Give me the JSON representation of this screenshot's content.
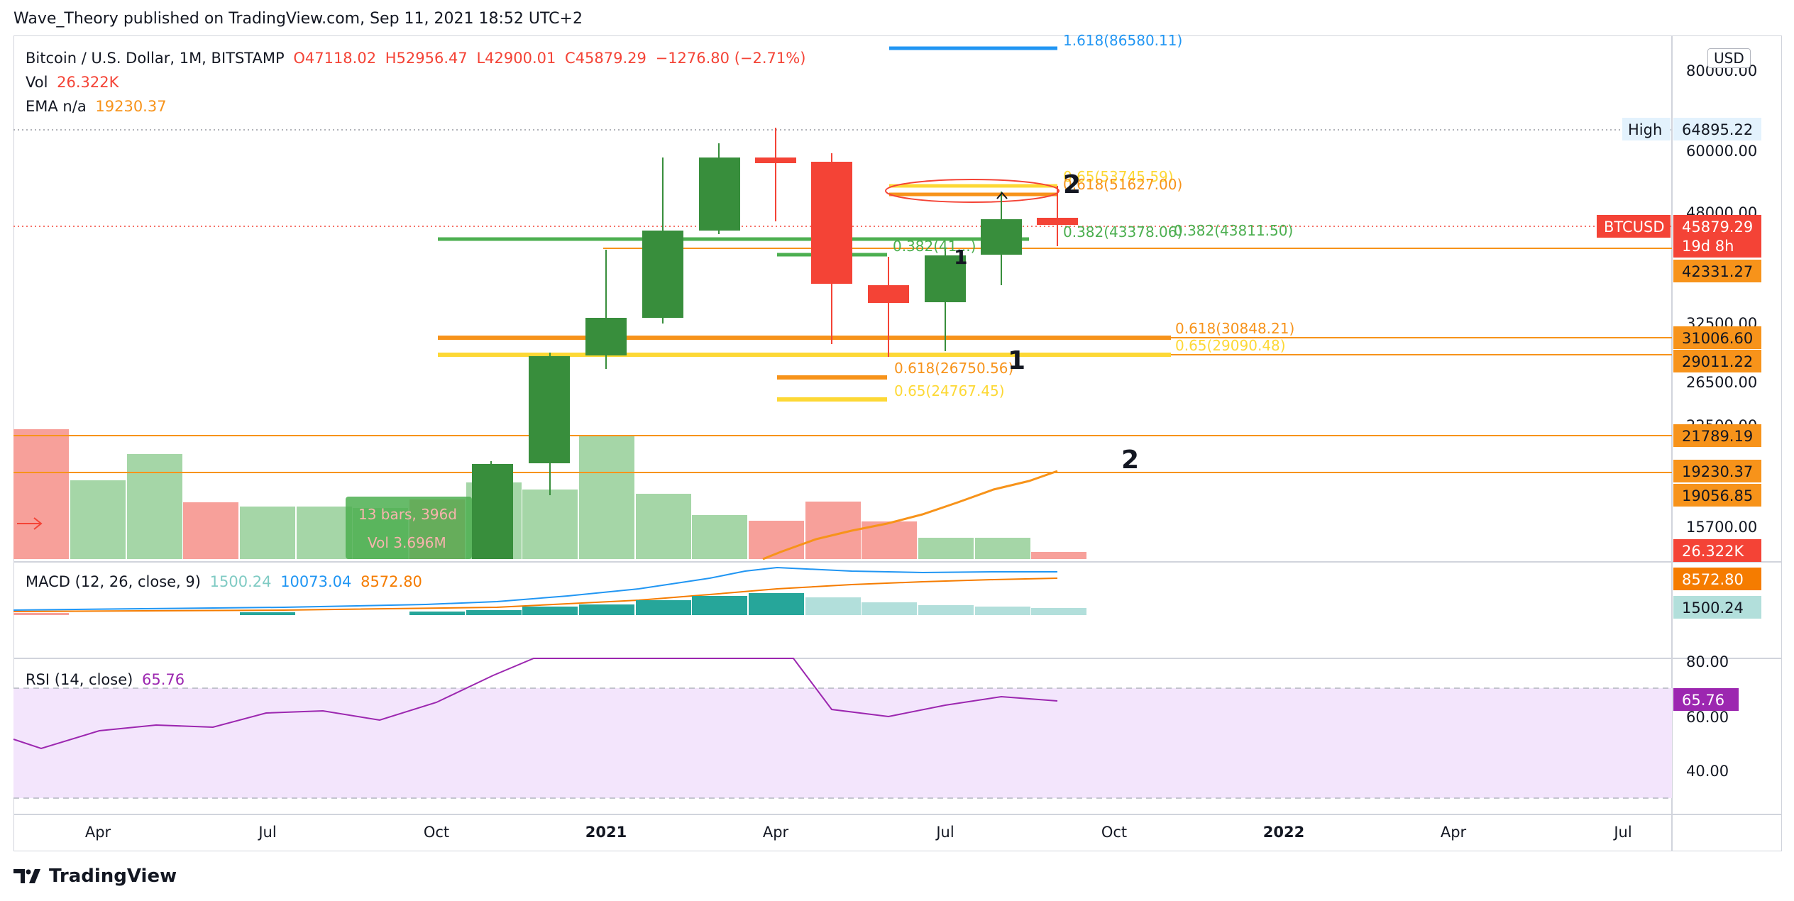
{
  "publisher_line": "Wave_Theory published on TradingView.com, Sep 11, 2021 18:52 UTC+2",
  "footer_brand": "TradingView",
  "currency": "USD",
  "legend": {
    "symbol": "Bitcoin / U.S. Dollar, 1M, BITSTAMP",
    "open": "O47118.02",
    "high": "H52956.47",
    "low": "L42900.01",
    "close": "C45879.29",
    "change": "−1276.80 (−2.71%)",
    "vol_label": "Vol",
    "vol_value": "26.322K",
    "ema_label": "EMA n/a",
    "ema_value": "19230.37",
    "macd_label": "MACD (12, 26, close, 9)",
    "macd_hist": "1500.24",
    "macd_line": "10073.04",
    "macd_signal": "8572.80",
    "rsi_label": "RSI (14, close)",
    "rsi_value": "65.76"
  },
  "colors": {
    "up": "#388e3c",
    "down": "#f44336",
    "vol_up": "#a5d6a7",
    "vol_down": "#f7a09a",
    "orange": "#f7931a",
    "yellow": "#fdd835",
    "green_line": "#4caf50",
    "blue": "#2196f3",
    "rsi": "#9c27b0",
    "teal": "#26a69a",
    "teal_light": "#b2dfdb"
  },
  "chart_data": {
    "type": "candlestick",
    "interval": "1M",
    "price_axis": {
      "ticks": [
        "80000.00",
        "60000.00",
        "48000.00",
        "32500.00",
        "26500.00",
        "22500.00",
        "15700.00"
      ],
      "high_marker": {
        "label": "High",
        "value": "64895.22"
      },
      "badges": [
        {
          "label": "BTCUSD",
          "value": "45879.29",
          "sub": "19d 8h"
        },
        {
          "value": "42331.27"
        },
        {
          "value": "31006.60"
        },
        {
          "value": "29011.22"
        },
        {
          "value": "21789.19"
        },
        {
          "value": "19230.37"
        },
        {
          "value": "19056.85"
        },
        {
          "value": "26.322K"
        },
        {
          "value": "8572.80"
        },
        {
          "value": "1500.24"
        },
        {
          "value": "65.76"
        }
      ]
    },
    "time_axis": [
      "Apr",
      "Jul",
      "Oct",
      "2021",
      "Apr",
      "Jul",
      "Oct",
      "2022",
      "Apr",
      "Jul"
    ],
    "candles": [
      {
        "m": "2020-11",
        "o": 13790,
        "h": 19865,
        "l": 13230,
        "c": 19700
      },
      {
        "m": "2020-12",
        "o": 19700,
        "h": 29300,
        "l": 17570,
        "c": 28990
      },
      {
        "m": "2021-01",
        "o": 28990,
        "h": 41950,
        "l": 28130,
        "c": 33110
      },
      {
        "m": "2021-02",
        "o": 33110,
        "h": 58330,
        "l": 32300,
        "c": 45200
      },
      {
        "m": "2021-03",
        "o": 45200,
        "h": 61780,
        "l": 45000,
        "c": 58800
      },
      {
        "m": "2021-04",
        "o": 58800,
        "h": 64895,
        "l": 47000,
        "c": 57700
      },
      {
        "m": "2021-05",
        "o": 57700,
        "h": 59500,
        "l": 30000,
        "c": 37300
      },
      {
        "m": "2021-06",
        "o": 35000,
        "h": 41300,
        "l": 28800,
        "c": 33500
      },
      {
        "m": "2021-07",
        "o": 33500,
        "h": 42400,
        "l": 29300,
        "c": 41500
      },
      {
        "m": "2021-08",
        "o": 41500,
        "h": 50500,
        "l": 37400,
        "c": 47100
      },
      {
        "m": "2021-09",
        "o": 47118,
        "h": 52956,
        "l": 42900,
        "c": 45879
      }
    ],
    "fib_labels": [
      "1.618(86580.11)",
      "0.65(53745.59)",
      "0.618(51627.00)",
      "0.382(43378.06)",
      "0.382(43811.50)",
      "0.382(41...)",
      "0.618(30848.21)",
      "0.65(29090.48)",
      "0.618(26750.56)",
      "0.65(24767.45)"
    ],
    "wave_labels": [
      "2",
      "1",
      "1",
      "2"
    ],
    "measure": {
      "bars": "13 bars, 396d",
      "vol": "Vol 3.696M"
    },
    "macd": {
      "hist": 1500.24,
      "macd": 10073.04,
      "signal": 8572.8
    },
    "rsi": {
      "value": 65.76,
      "levels": [
        "80.00",
        "60.00",
        "40.00"
      ]
    }
  }
}
